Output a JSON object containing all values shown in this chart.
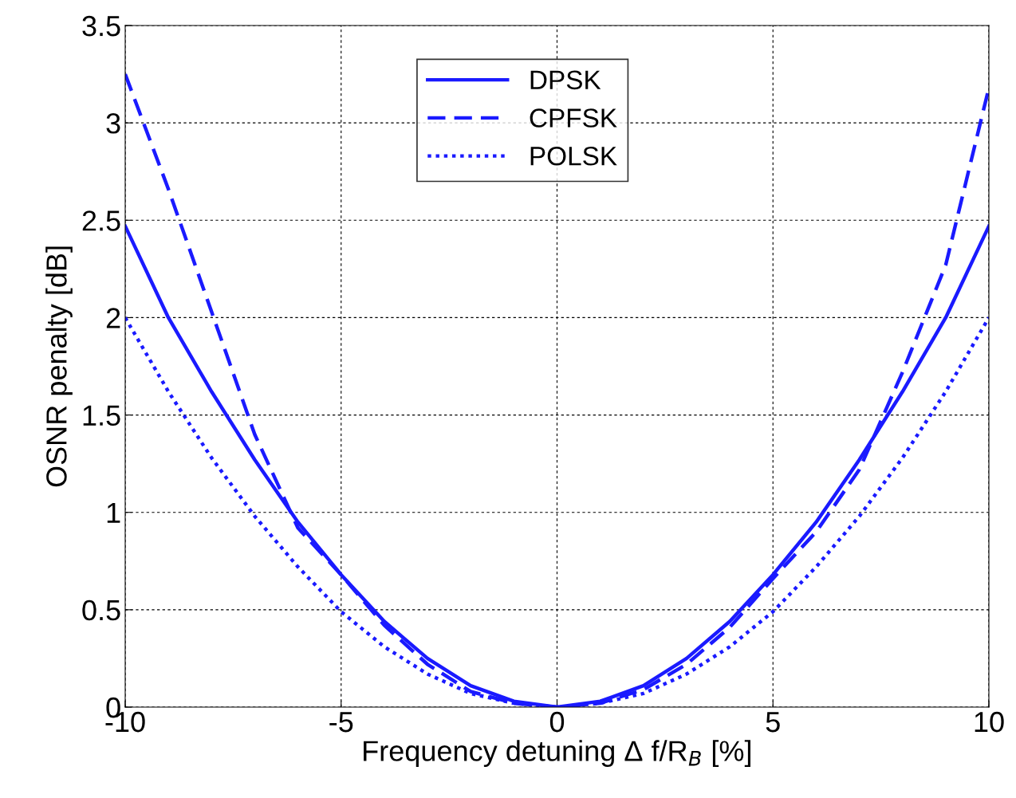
{
  "chart_data": {
    "type": "line",
    "xlabel": "Frequency detuning Δ f/R$_{B}$ [%]",
    "ylabel": "OSNR penalty [dB]",
    "x": [
      -10,
      -9,
      -8,
      -7,
      -6,
      -5,
      -4,
      -3,
      -2,
      -1,
      0,
      1,
      2,
      3,
      4,
      5,
      6,
      7,
      8,
      9,
      10
    ],
    "series": [
      {
        "name": "DPSK",
        "color": "#1a1aff",
        "line_style": "solid",
        "values": [
          2.47,
          2.0,
          1.62,
          1.27,
          0.95,
          0.68,
          0.44,
          0.25,
          0.11,
          0.03,
          0,
          0.03,
          0.11,
          0.25,
          0.44,
          0.68,
          0.95,
          1.27,
          1.62,
          2.0,
          2.47
        ]
      },
      {
        "name": "CPFSK",
        "color": "#1a1aff",
        "line_style": "dashed",
        "values": [
          3.25,
          2.66,
          2.03,
          1.4,
          0.92,
          0.68,
          0.42,
          0.22,
          0.08,
          0.02,
          0,
          0.02,
          0.09,
          0.22,
          0.41,
          0.66,
          0.9,
          1.22,
          1.72,
          2.27,
          3.18
        ]
      },
      {
        "name": "POLSK",
        "color": "#1a1aff",
        "line_style": "dotted",
        "values": [
          2.0,
          1.62,
          1.28,
          0.98,
          0.72,
          0.49,
          0.31,
          0.17,
          0.07,
          0.02,
          0,
          0.02,
          0.07,
          0.17,
          0.31,
          0.49,
          0.72,
          0.98,
          1.28,
          1.62,
          2.0
        ]
      }
    ],
    "xlim": [
      -10,
      10
    ],
    "xticks": [
      -10,
      -5,
      0,
      5,
      10
    ],
    "ylim": [
      0,
      3.5
    ],
    "yticks": [
      0,
      0.5,
      1,
      1.5,
      2,
      2.5,
      3,
      3.5
    ],
    "grid": true,
    "legend": "top"
  }
}
